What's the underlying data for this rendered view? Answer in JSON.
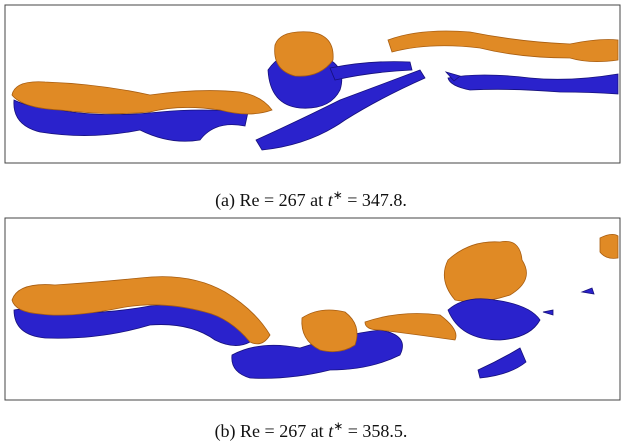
{
  "figures": [
    {
      "caption": {
        "label": "(a) Re = 267 at",
        "variable": "t",
        "superscript": "∗",
        "rest": "= 347.8."
      }
    },
    {
      "caption": {
        "label": "(b) Re = 267 at",
        "variable": "t",
        "superscript": "∗",
        "rest": "= 358.5."
      }
    }
  ]
}
